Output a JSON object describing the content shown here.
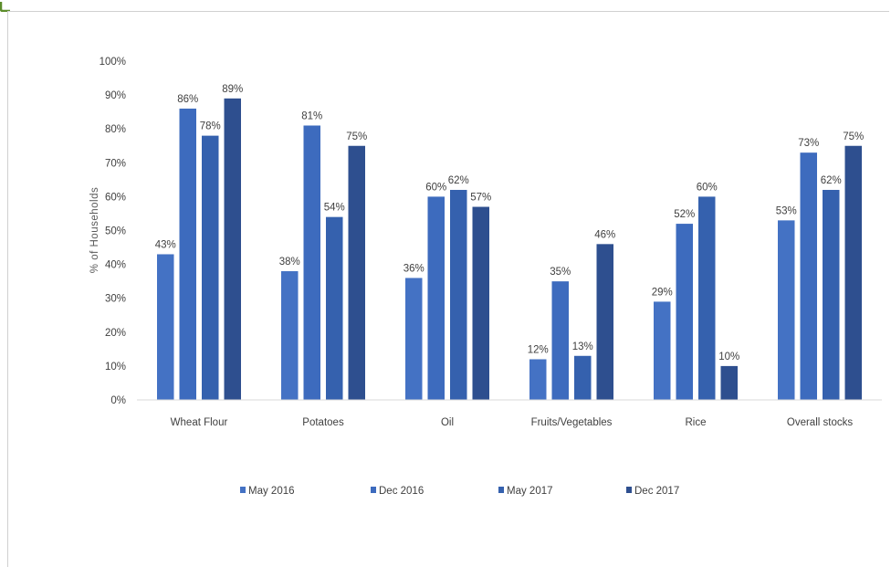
{
  "chart_data": {
    "type": "bar",
    "title": "",
    "xlabel": "",
    "ylabel": "% of Households",
    "ylim": [
      0,
      100
    ],
    "y_ticks": [
      "0%",
      "10%",
      "20%",
      "30%",
      "40%",
      "50%",
      "60%",
      "70%",
      "80%",
      "90%",
      "100%"
    ],
    "categories": [
      "Wheat Flour",
      "Potatoes",
      "Oil",
      "Fruits/Vegetables",
      "Rice",
      "Overall stocks"
    ],
    "series": [
      {
        "name": "May 2016",
        "color": "#4472C4",
        "values": [
          43,
          38,
          36,
          12,
          29,
          53
        ]
      },
      {
        "name": "Dec 2016",
        "color": "#3D6BBE",
        "values": [
          86,
          81,
          60,
          35,
          52,
          73
        ]
      },
      {
        "name": "May 2017",
        "color": "#3561AE",
        "values": [
          78,
          54,
          62,
          13,
          60,
          62
        ]
      },
      {
        "name": "Dec 2017",
        "color": "#2E4F8F",
        "values": [
          89,
          75,
          57,
          46,
          10,
          75
        ]
      }
    ],
    "data_labels": [
      [
        "43%",
        "38%",
        "36%",
        "12%",
        "29%",
        "53%"
      ],
      [
        "86%",
        "81%",
        "60%",
        "35%",
        "52%",
        "73%"
      ],
      [
        "78%",
        "54%",
        "62%",
        "13%",
        "60%",
        "62%"
      ],
      [
        "89%",
        "75%",
        "57%",
        "46%",
        "10%",
        "75%"
      ]
    ],
    "grid": false,
    "legend_position": "bottom"
  },
  "colors": {
    "axis": "#d9d9d9",
    "corner_mark": "#5b8c2a"
  }
}
